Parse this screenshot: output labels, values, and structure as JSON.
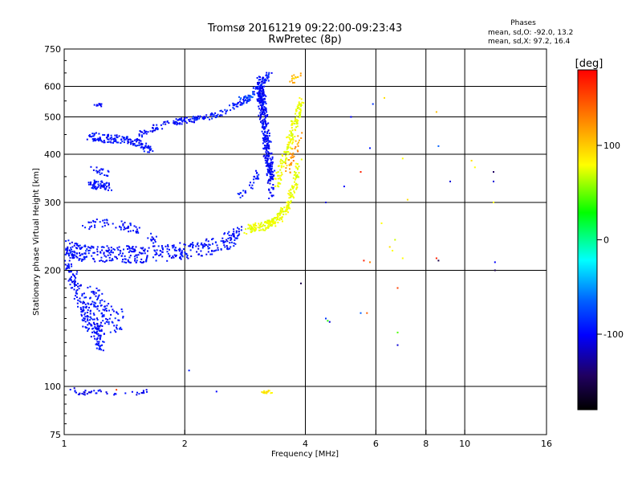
{
  "header": {
    "title_line1": "Tromsø 20161219 09:22:00-09:23:43",
    "title_line2": "RwPretec (8p)",
    "phase_title": "Phases",
    "phase_O": "mean, sd,O: -92.0, 13.2",
    "phase_X": "mean, sd,X:  97.2, 16.4"
  },
  "colorbar": {
    "label": "[deg]",
    "ticks": [
      {
        "value": 100,
        "label": "100"
      },
      {
        "value": 0,
        "label": "0"
      },
      {
        "value": -100,
        "label": "-100"
      }
    ],
    "range": [
      -180,
      180
    ]
  },
  "chart_data": {
    "type": "scatter",
    "title": "Tromsø 20161219 09:22:00-09:23:43",
    "subtitle": "RwPretec (8p)",
    "xlabel": "Frequency [MHz]",
    "ylabel": "Stationary phase Virtual Height [km]",
    "x_scale": "log",
    "y_scale": "log",
    "xlim": [
      1,
      16
    ],
    "ylim": [
      75,
      750
    ],
    "x_ticks": [
      {
        "value": 1,
        "label": "1"
      },
      {
        "value": 2,
        "label": "2"
      },
      {
        "value": 4,
        "label": "4"
      },
      {
        "value": 6,
        "label": "6"
      },
      {
        "value": 8,
        "label": "8"
      },
      {
        "value": 10,
        "label": "10"
      },
      {
        "value": 16,
        "label": "16"
      }
    ],
    "x_grid": [
      2,
      4,
      6,
      8,
      10
    ],
    "y_ticks": [
      {
        "value": 75,
        "label": "75"
      },
      {
        "value": 100,
        "label": "100"
      },
      {
        "value": 200,
        "label": "200"
      },
      {
        "value": 300,
        "label": "300"
      },
      {
        "value": 400,
        "label": "400"
      },
      {
        "value": 500,
        "label": "500"
      },
      {
        "value": 600,
        "label": "600"
      },
      {
        "value": 750,
        "label": "750"
      }
    ],
    "y_grid": [
      100,
      200,
      300,
      400,
      500,
      600
    ],
    "color_scale": "phase degrees (rainbow, -180 to 180)",
    "series": [
      {
        "kind": "band",
        "phase": -95,
        "x": [
          1.02,
          1.05,
          1.1,
          1.2,
          1.3,
          1.4,
          1.5,
          1.6,
          1.8,
          2.0,
          2.2,
          2.4,
          2.6,
          2.75
        ],
        "y": [
          230,
          225,
          222,
          220,
          220,
          220,
          220,
          220,
          222,
          225,
          228,
          232,
          240,
          250
        ],
        "spread": 0.1,
        "n": 420
      },
      {
        "kind": "band",
        "phase": -95,
        "x": [
          1.12,
          1.2,
          1.3,
          1.4,
          1.5,
          1.6,
          1.7
        ],
        "y": [
          260,
          265,
          265,
          262,
          255,
          248,
          240
        ],
        "spread": 0.05,
        "n": 70
      },
      {
        "kind": "band",
        "phase": -95,
        "x": [
          1.0,
          1.05,
          1.1,
          1.15,
          1.2,
          1.25
        ],
        "y": [
          215,
          190,
          165,
          148,
          138,
          132
        ],
        "spread": 0.16,
        "n": 230
      },
      {
        "kind": "band",
        "phase": -92,
        "x": [
          1.15,
          1.2,
          1.25,
          1.3,
          1.35,
          1.4
        ],
        "y": [
          175,
          170,
          160,
          150,
          145,
          150
        ],
        "spread": 0.14,
        "n": 90
      },
      {
        "kind": "band",
        "phase": -95,
        "x": [
          1.15,
          1.25,
          1.35,
          1.45,
          1.55,
          1.65
        ],
        "y": [
          445,
          440,
          438,
          435,
          425,
          410
        ],
        "spread": 0.05,
        "n": 150
      },
      {
        "kind": "band",
        "phase": -95,
        "x": [
          1.55,
          1.7,
          1.85,
          2.0,
          2.2
        ],
        "y": [
          450,
          470,
          482,
          490,
          495
        ],
        "spread": 0.035,
        "n": 90
      },
      {
        "kind": "band",
        "phase": -90,
        "x": [
          2.1,
          2.3,
          2.5,
          2.7,
          2.9
        ],
        "y": [
          495,
          500,
          515,
          540,
          560
        ],
        "spread": 0.035,
        "n": 80
      },
      {
        "kind": "band",
        "phase": -70,
        "x": [
          2.75,
          2.9,
          3.0
        ],
        "y": [
          550,
          560,
          580
        ],
        "spread": 0.04,
        "n": 25
      },
      {
        "kind": "band",
        "phase": -95,
        "x": [
          1.17,
          1.2,
          1.25,
          1.3
        ],
        "y": [
          330,
          335,
          332,
          330
        ],
        "spread": 0.05,
        "n": 60
      },
      {
        "kind": "band",
        "phase": -95,
        "x": [
          1.18,
          1.23,
          1.28
        ],
        "y": [
          365,
          360,
          358
        ],
        "spread": 0.04,
        "n": 20
      },
      {
        "kind": "band",
        "phase": -95,
        "x": [
          1.2,
          1.24
        ],
        "y": [
          540,
          535
        ],
        "spread": 0.02,
        "n": 10
      },
      {
        "kind": "band",
        "phase": -90,
        "x": [
          2.7,
          2.85,
          3.0,
          3.05
        ],
        "y": [
          310,
          322,
          345,
          360
        ],
        "spread": 0.03,
        "n": 30
      },
      {
        "kind": "band",
        "phase": -98,
        "x": [
          3.08,
          3.1,
          3.15,
          3.2,
          3.25,
          3.3
        ],
        "y": [
          600,
          560,
          500,
          430,
          380,
          330
        ],
        "spread": 0.18,
        "n": 380
      },
      {
        "kind": "band",
        "phase": -90,
        "x": [
          3.0,
          3.1,
          3.2,
          3.25
        ],
        "y": [
          580,
          610,
          630,
          640
        ],
        "spread": 0.05,
        "n": 45
      },
      {
        "kind": "band",
        "phase": 92,
        "x": [
          2.85,
          3.0,
          3.2,
          3.4,
          3.6,
          3.75,
          3.85
        ],
        "y": [
          255,
          258,
          262,
          270,
          290,
          330,
          380
        ],
        "spread": 0.05,
        "n": 220
      },
      {
        "kind": "band",
        "phase": 92,
        "x": [
          3.4,
          3.5,
          3.6,
          3.7,
          3.8,
          3.9
        ],
        "y": [
          330,
          370,
          410,
          450,
          500,
          550
        ],
        "spread": 0.06,
        "n": 150
      },
      {
        "kind": "band",
        "phase": 135,
        "x": [
          3.6,
          3.7,
          3.8,
          3.9
        ],
        "y": [
          360,
          390,
          420,
          450
        ],
        "spread": 0.05,
        "n": 35
      },
      {
        "kind": "band",
        "phase": 120,
        "x": [
          3.7,
          3.8,
          3.9
        ],
        "y": [
          620,
          640,
          650
        ],
        "spread": 0.03,
        "n": 15
      },
      {
        "kind": "band",
        "phase": -100,
        "x": [
          1.05,
          1.1,
          1.2,
          1.3,
          1.5,
          1.6
        ],
        "y": [
          98,
          96,
          97,
          96,
          96,
          97
        ],
        "spread": 0.025,
        "n": 45
      },
      {
        "kind": "band",
        "phase": 105,
        "x": [
          3.15,
          3.2,
          3.3
        ],
        "y": [
          97,
          96,
          97
        ],
        "spread": 0.02,
        "n": 18
      },
      {
        "kind": "points",
        "points": [
          {
            "x": 4.5,
            "y": 150,
            "phase": -80
          },
          {
            "x": 4.55,
            "y": 148,
            "phase": 10
          },
          {
            "x": 4.6,
            "y": 147,
            "phase": -110
          },
          {
            "x": 5.5,
            "y": 155,
            "phase": -60
          },
          {
            "x": 5.7,
            "y": 155,
            "phase": 150
          },
          {
            "x": 6.8,
            "y": 138,
            "phase": 30
          },
          {
            "x": 6.8,
            "y": 128,
            "phase": -110
          },
          {
            "x": 6.8,
            "y": 180,
            "phase": 160
          },
          {
            "x": 5.6,
            "y": 212,
            "phase": 170
          },
          {
            "x": 5.8,
            "y": 210,
            "phase": 140
          },
          {
            "x": 6.2,
            "y": 265,
            "phase": 100
          },
          {
            "x": 6.5,
            "y": 230,
            "phase": 110
          },
          {
            "x": 6.6,
            "y": 225,
            "phase": 100
          },
          {
            "x": 6.7,
            "y": 240,
            "phase": 80
          },
          {
            "x": 7.0,
            "y": 215,
            "phase": 100
          },
          {
            "x": 7.2,
            "y": 305,
            "phase": 110
          },
          {
            "x": 8.5,
            "y": 215,
            "phase": 170
          },
          {
            "x": 8.6,
            "y": 212,
            "phase": -150
          },
          {
            "x": 9.2,
            "y": 340,
            "phase": -110
          },
          {
            "x": 10.4,
            "y": 385,
            "phase": 110
          },
          {
            "x": 10.6,
            "y": 370,
            "phase": 100
          },
          {
            "x": 11.8,
            "y": 360,
            "phase": -140
          },
          {
            "x": 11.8,
            "y": 340,
            "phase": -110
          },
          {
            "x": 11.8,
            "y": 300,
            "phase": 100
          },
          {
            "x": 11.9,
            "y": 210,
            "phase": -100
          },
          {
            "x": 11.9,
            "y": 200,
            "phase": -150
          },
          {
            "x": 5.2,
            "y": 500,
            "phase": -100
          },
          {
            "x": 5.9,
            "y": 540,
            "phase": -80
          },
          {
            "x": 6.3,
            "y": 560,
            "phase": 110
          },
          {
            "x": 8.5,
            "y": 515,
            "phase": 120
          },
          {
            "x": 8.6,
            "y": 420,
            "phase": -60
          },
          {
            "x": 5.5,
            "y": 360,
            "phase": 170
          },
          {
            "x": 5.0,
            "y": 330,
            "phase": -100
          },
          {
            "x": 4.5,
            "y": 300,
            "phase": -110
          },
          {
            "x": 5.8,
            "y": 415,
            "phase": -90
          },
          {
            "x": 7.0,
            "y": 390,
            "phase": 100
          },
          {
            "x": 3.9,
            "y": 185,
            "phase": -150
          },
          {
            "x": 2.05,
            "y": 110,
            "phase": -90
          },
          {
            "x": 1.35,
            "y": 98,
            "phase": 160
          },
          {
            "x": 2.4,
            "y": 97,
            "phase": -100
          }
        ]
      }
    ]
  }
}
